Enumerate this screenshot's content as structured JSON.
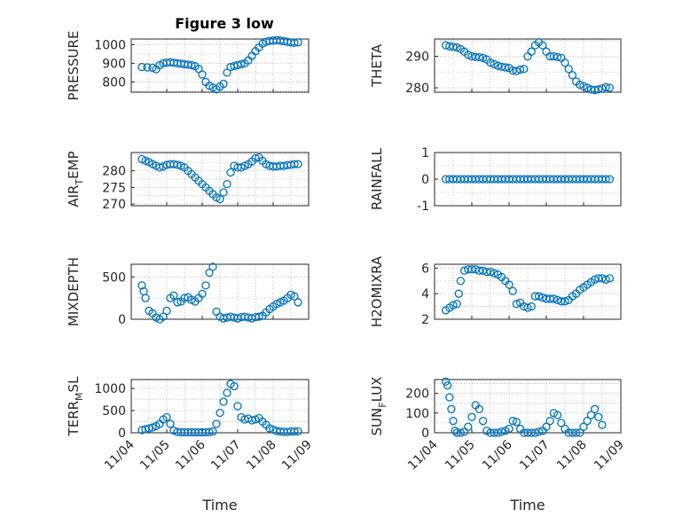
{
  "figure": {
    "title": "Figure 3 low",
    "marker_color": "#0072BD"
  },
  "chart_data": [
    {
      "type": "scatter",
      "ylabel": "PRESSURE",
      "xlabel": "",
      "title": "Figure 3 low",
      "grid": true,
      "xlim": [
        0,
        5
      ],
      "ylim": [
        745,
        1030
      ],
      "yticks": [
        800,
        900,
        1000
      ],
      "xtick_labels": [
        "11/04",
        "11/05",
        "11/06",
        "11/07",
        "11/08",
        "11/09"
      ],
      "x": [
        0.3,
        0.45,
        0.6,
        0.7,
        0.8,
        0.9,
        1.0,
        1.1,
        1.2,
        1.3,
        1.4,
        1.5,
        1.6,
        1.7,
        1.8,
        1.9,
        2.0,
        2.1,
        2.2,
        2.3,
        2.4,
        2.5,
        2.6,
        2.7,
        2.8,
        2.9,
        3.0,
        3.1,
        3.2,
        3.3,
        3.4,
        3.5,
        3.6,
        3.7,
        3.8,
        3.9,
        4.0,
        4.1,
        4.2,
        4.3,
        4.4,
        4.5,
        4.6,
        4.7
      ],
      "y": [
        880,
        878,
        876,
        868,
        890,
        900,
        903,
        905,
        903,
        900,
        898,
        895,
        893,
        890,
        885,
        870,
        840,
        800,
        780,
        770,
        760,
        775,
        790,
        850,
        880,
        885,
        890,
        895,
        900,
        915,
        940,
        965,
        985,
        1005,
        1015,
        1020,
        1022,
        1024,
        1022,
        1018,
        1015,
        1012,
        1010,
        1012
      ]
    },
    {
      "type": "scatter",
      "ylabel": "THETA",
      "xlabel": "",
      "grid": true,
      "xlim": [
        0,
        5
      ],
      "ylim": [
        278.6,
        295.5
      ],
      "yticks": [
        280,
        290
      ],
      "xtick_labels": [
        "11/04",
        "11/05",
        "11/06",
        "11/07",
        "11/08",
        "11/09"
      ],
      "x": [
        0.3,
        0.4,
        0.5,
        0.6,
        0.7,
        0.8,
        0.9,
        1.0,
        1.1,
        1.2,
        1.3,
        1.4,
        1.5,
        1.6,
        1.7,
        1.8,
        1.9,
        2.0,
        2.1,
        2.2,
        2.3,
        2.4,
        2.5,
        2.6,
        2.7,
        2.8,
        2.9,
        3.0,
        3.1,
        3.2,
        3.3,
        3.4,
        3.5,
        3.6,
        3.7,
        3.8,
        3.9,
        4.0,
        4.1,
        4.2,
        4.3,
        4.4,
        4.5,
        4.6,
        4.7
      ],
      "y": [
        293.5,
        293.2,
        293.0,
        292.8,
        292.3,
        291.5,
        290.5,
        290.0,
        289.8,
        289.7,
        289.5,
        289.0,
        288.0,
        287.5,
        287.0,
        286.7,
        286.5,
        286.3,
        285.5,
        285.3,
        285.8,
        286.0,
        290.0,
        291.5,
        293.5,
        294.5,
        293.5,
        291.5,
        290.0,
        290.0,
        289.8,
        289.5,
        288.0,
        286.0,
        284.0,
        282.0,
        281.0,
        280.5,
        280.0,
        279.5,
        279.3,
        279.5,
        279.8,
        280.2,
        280.0
      ]
    },
    {
      "type": "scatter",
      "ylabel": "AIR_TEMP",
      "xlabel": "",
      "grid": true,
      "xlim": [
        0,
        5
      ],
      "ylim": [
        269.5,
        285.5
      ],
      "yticks": [
        270,
        275,
        280
      ],
      "xtick_labels": [
        "11/04",
        "11/05",
        "11/06",
        "11/07",
        "11/08",
        "11/09"
      ],
      "x": [
        0.3,
        0.4,
        0.5,
        0.6,
        0.7,
        0.8,
        0.9,
        1.0,
        1.1,
        1.2,
        1.3,
        1.4,
        1.5,
        1.6,
        1.7,
        1.8,
        1.9,
        2.0,
        2.1,
        2.2,
        2.3,
        2.4,
        2.5,
        2.6,
        2.7,
        2.8,
        2.9,
        3.0,
        3.1,
        3.2,
        3.3,
        3.4,
        3.5,
        3.6,
        3.7,
        3.8,
        3.9,
        4.0,
        4.1,
        4.2,
        4.3,
        4.4,
        4.5,
        4.6,
        4.7
      ],
      "y": [
        283.5,
        283.0,
        282.6,
        282.0,
        281.5,
        281.0,
        281.3,
        281.8,
        282.0,
        282.0,
        281.8,
        281.5,
        281.0,
        280.0,
        279.0,
        278.0,
        277.0,
        276.0,
        275.0,
        274.0,
        273.0,
        272.0,
        271.5,
        273.5,
        276.0,
        279.5,
        281.5,
        281.0,
        281.0,
        281.5,
        282.0,
        282.8,
        283.8,
        284.0,
        283.0,
        282.0,
        281.5,
        281.3,
        281.3,
        281.5,
        281.5,
        281.7,
        281.8,
        282.0,
        282.0
      ]
    },
    {
      "type": "scatter",
      "ylabel": "RAINFALL",
      "xlabel": "",
      "grid": true,
      "xlim": [
        0,
        5
      ],
      "ylim": [
        -1,
        1
      ],
      "yticks": [
        -1,
        0,
        1
      ],
      "xtick_labels": [
        "11/04",
        "11/05",
        "11/06",
        "11/07",
        "11/08",
        "11/09"
      ],
      "x": [
        0.3,
        0.4,
        0.5,
        0.6,
        0.7,
        0.8,
        0.9,
        1.0,
        1.1,
        1.2,
        1.3,
        1.4,
        1.5,
        1.6,
        1.7,
        1.8,
        1.9,
        2.0,
        2.1,
        2.2,
        2.3,
        2.4,
        2.5,
        2.6,
        2.7,
        2.8,
        2.9,
        3.0,
        3.1,
        3.2,
        3.3,
        3.4,
        3.5,
        3.6,
        3.7,
        3.8,
        3.9,
        4.0,
        4.1,
        4.2,
        4.3,
        4.4,
        4.5,
        4.6,
        4.7
      ],
      "y": [
        0,
        0,
        0,
        0,
        0,
        0,
        0,
        0,
        0,
        0,
        0,
        0,
        0,
        0,
        0,
        0,
        0,
        0,
        0,
        0,
        0,
        0,
        0,
        0,
        0,
        0,
        0,
        0,
        0,
        0,
        0,
        0,
        0,
        0,
        0,
        0,
        0,
        0,
        0,
        0,
        0,
        0,
        0,
        0,
        0
      ]
    },
    {
      "type": "scatter",
      "ylabel": "MIXDEPTH",
      "xlabel": "",
      "grid": true,
      "xlim": [
        0,
        5
      ],
      "ylim": [
        0,
        650
      ],
      "yticks": [
        0,
        500
      ],
      "xtick_labels": [
        "11/04",
        "11/05",
        "11/06",
        "11/07",
        "11/08",
        "11/09"
      ],
      "x": [
        0.3,
        0.35,
        0.4,
        0.5,
        0.6,
        0.7,
        0.8,
        0.9,
        1.0,
        1.1,
        1.2,
        1.3,
        1.4,
        1.5,
        1.6,
        1.7,
        1.8,
        1.9,
        2.0,
        2.1,
        2.2,
        2.3,
        2.4,
        2.5,
        2.6,
        2.7,
        2.8,
        2.9,
        3.0,
        3.1,
        3.2,
        3.3,
        3.4,
        3.5,
        3.6,
        3.7,
        3.8,
        3.9,
        4.0,
        4.1,
        4.2,
        4.3,
        4.4,
        4.5,
        4.6,
        4.7
      ],
      "y": [
        400,
        330,
        250,
        100,
        70,
        20,
        0,
        30,
        100,
        250,
        280,
        200,
        210,
        250,
        260,
        230,
        210,
        250,
        300,
        400,
        550,
        620,
        90,
        30,
        10,
        20,
        30,
        20,
        10,
        25,
        30,
        20,
        10,
        25,
        30,
        40,
        80,
        120,
        150,
        180,
        200,
        220,
        250,
        290,
        270,
        200
      ]
    },
    {
      "type": "scatter",
      "ylabel": "H2OMIXRA",
      "xlabel": "",
      "grid": true,
      "xlim": [
        0,
        5
      ],
      "ylim": [
        2,
        6.3
      ],
      "yticks": [
        2,
        4,
        6
      ],
      "xtick_labels": [
        "11/04",
        "11/05",
        "11/06",
        "11/07",
        "11/08",
        "11/09"
      ],
      "x": [
        0.3,
        0.4,
        0.5,
        0.6,
        0.65,
        0.7,
        0.8,
        0.9,
        1.0,
        1.1,
        1.2,
        1.3,
        1.4,
        1.5,
        1.6,
        1.7,
        1.8,
        1.9,
        2.0,
        2.1,
        2.2,
        2.3,
        2.4,
        2.5,
        2.6,
        2.7,
        2.8,
        2.9,
        3.0,
        3.1,
        3.2,
        3.3,
        3.4,
        3.5,
        3.6,
        3.7,
        3.8,
        3.9,
        4.0,
        4.1,
        4.2,
        4.3,
        4.4,
        4.5,
        4.6,
        4.7
      ],
      "y": [
        2.7,
        2.9,
        3.1,
        3.2,
        4.0,
        5.0,
        5.8,
        5.9,
        5.9,
        5.9,
        5.8,
        5.8,
        5.7,
        5.7,
        5.6,
        5.5,
        5.3,
        5.0,
        4.7,
        4.2,
        3.2,
        3.3,
        3.0,
        2.9,
        3.0,
        3.8,
        3.8,
        3.7,
        3.6,
        3.6,
        3.6,
        3.5,
        3.4,
        3.4,
        3.5,
        3.8,
        4.0,
        4.3,
        4.5,
        4.7,
        4.9,
        5.1,
        5.2,
        5.2,
        5.1,
        5.2
      ]
    },
    {
      "type": "scatter",
      "ylabel": "TERR_MSL",
      "xlabel": "Time",
      "grid": true,
      "xlim": [
        0,
        5
      ],
      "ylim": [
        0,
        1200
      ],
      "yticks": [
        0,
        500,
        1000
      ],
      "xtick_labels": [
        "11/04",
        "11/05",
        "11/06",
        "11/07",
        "11/08",
        "11/09"
      ],
      "x": [
        0.3,
        0.4,
        0.5,
        0.6,
        0.7,
        0.8,
        0.9,
        1.0,
        1.1,
        1.2,
        1.3,
        1.4,
        1.5,
        1.6,
        1.7,
        1.8,
        1.9,
        2.0,
        2.1,
        2.2,
        2.3,
        2.4,
        2.5,
        2.6,
        2.7,
        2.8,
        2.9,
        3.0,
        3.1,
        3.2,
        3.3,
        3.4,
        3.5,
        3.6,
        3.7,
        3.8,
        3.9,
        4.0,
        4.1,
        4.2,
        4.3,
        4.4,
        4.5,
        4.6,
        4.7
      ],
      "y": [
        60,
        80,
        100,
        120,
        150,
        200,
        300,
        350,
        200,
        50,
        20,
        10,
        10,
        10,
        10,
        10,
        10,
        10,
        10,
        15,
        30,
        200,
        450,
        700,
        900,
        1100,
        1050,
        600,
        350,
        300,
        320,
        280,
        300,
        330,
        250,
        180,
        100,
        70,
        40,
        30,
        20,
        20,
        30,
        30,
        30
      ]
    },
    {
      "type": "scatter",
      "ylabel": "SUN_FLUX",
      "xlabel": "Time",
      "grid": true,
      "xlim": [
        0,
        5
      ],
      "ylim": [
        0,
        270
      ],
      "yticks": [
        0,
        100,
        200
      ],
      "xtick_labels": [
        "11/04",
        "11/05",
        "11/06",
        "11/07",
        "11/08",
        "11/09"
      ],
      "x": [
        0.3,
        0.35,
        0.4,
        0.45,
        0.5,
        0.55,
        0.6,
        0.7,
        0.8,
        0.9,
        1.0,
        1.1,
        1.2,
        1.3,
        1.4,
        1.5,
        1.6,
        1.7,
        1.8,
        1.9,
        2.0,
        2.1,
        2.2,
        2.3,
        2.4,
        2.5,
        2.6,
        2.7,
        2.8,
        2.9,
        3.0,
        3.1,
        3.2,
        3.3,
        3.4,
        3.5,
        3.6,
        3.7,
        3.8,
        3.9,
        4.0,
        4.1,
        4.2,
        4.3,
        4.4,
        4.5
      ],
      "y": [
        260,
        240,
        180,
        120,
        60,
        10,
        0,
        0,
        5,
        30,
        80,
        140,
        120,
        60,
        10,
        0,
        0,
        0,
        5,
        10,
        20,
        60,
        55,
        20,
        0,
        0,
        0,
        0,
        5,
        10,
        30,
        60,
        100,
        90,
        50,
        20,
        0,
        0,
        0,
        0,
        30,
        60,
        90,
        120,
        80,
        40
      ]
    }
  ]
}
